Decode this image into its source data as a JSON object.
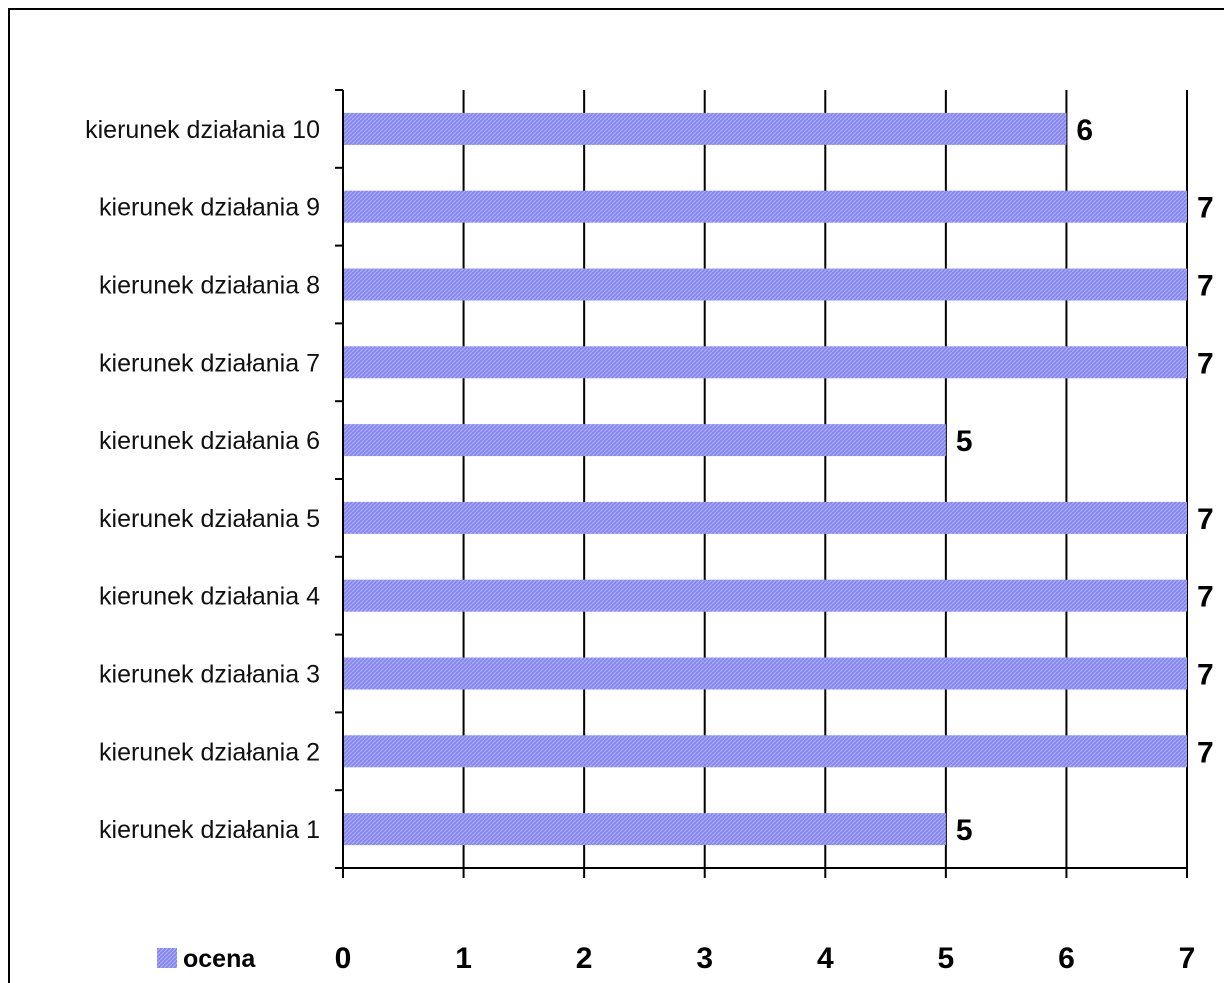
{
  "chart_data": {
    "type": "bar",
    "orientation": "horizontal",
    "categories": [
      "kierunek działania 1",
      "kierunek działania 2",
      "kierunek działania 3",
      "kierunek działania 4",
      "kierunek działania 5",
      "kierunek działania 6",
      "kierunek działania 7",
      "kierunek działania 8",
      "kierunek działania 9",
      "kierunek działania 10"
    ],
    "series": [
      {
        "name": "ocena",
        "values": [
          5,
          7,
          7,
          7,
          7,
          5,
          7,
          7,
          7,
          6
        ],
        "color": "#8080f0"
      }
    ],
    "data_labels": [
      "5",
      "7",
      "7",
      "7",
      "7",
      "5",
      "7",
      "7",
      "7",
      "6"
    ],
    "x_ticks": [
      "0",
      "1",
      "2",
      "3",
      "4",
      "5",
      "6",
      "7"
    ],
    "xlim": [
      0,
      7
    ],
    "title": "",
    "xlabel": "",
    "ylabel": "",
    "grid": "vertical major gridlines",
    "legend": {
      "position": "bottom-left",
      "label": "ocena"
    },
    "colors": {
      "bar": "#8080f0",
      "bar_pattern": "#a8a8f8",
      "grid": "#000000"
    }
  }
}
